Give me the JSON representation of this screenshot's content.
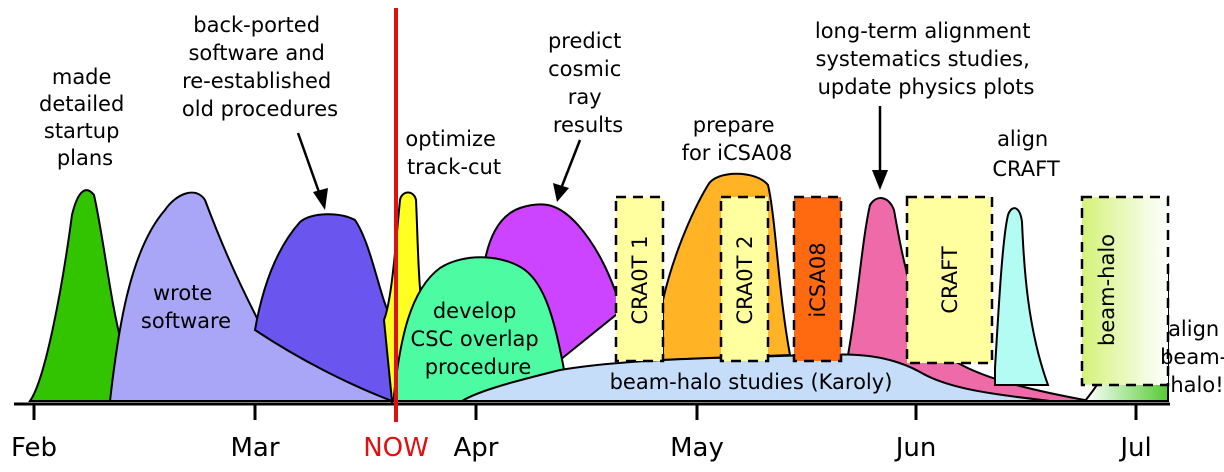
{
  "axis": {
    "months": [
      "Feb",
      "Mar",
      "Apr",
      "May",
      "Jun",
      "Jul"
    ],
    "now_label": "NOW"
  },
  "tasks": {
    "startup": [
      "made",
      "detailed",
      "startup",
      "plans"
    ],
    "wrote": [
      "wrote",
      "software"
    ],
    "backported": [
      "back-ported",
      "software and",
      "re-established",
      "old procedures"
    ],
    "optimize": [
      "optimize",
      "track-cut"
    ],
    "develop": [
      "develop",
      "CSC overlap",
      "procedure"
    ],
    "predict": [
      "predict",
      "cosmic",
      "ray",
      "results"
    ],
    "prepare": [
      "prepare",
      "for iCSA08"
    ],
    "longterm": [
      "long-term alignment",
      "systematics studies,",
      "update physics plots"
    ],
    "align_craft": [
      "align",
      "CRAFT"
    ],
    "align_halo": [
      "align",
      "beam-",
      "halo!"
    ],
    "beamhalo_studies": "beam-halo studies (Karoly)"
  },
  "periods": {
    "craft1": "CRA0T 1",
    "craft2": "CRA0T 2",
    "icsa08": "iCSA08",
    "craft": "CRAFT",
    "beamhalo": "beam-halo"
  },
  "colors": {
    "now_line": "#dd1111",
    "startup": "#33c400",
    "wrote": "#aaa6f7",
    "backported": "#6a55ee",
    "optimize": "#ffff22",
    "develop": "#4dfca2",
    "predict": "#cc44ff",
    "prepare": "#ffb325",
    "icsa08": "#ff6a10",
    "longterm": "#ee6aa9",
    "align_craft": "#b2fcf3",
    "pale_yellow": "#ffffa0",
    "beamhalo_studies": "#c6ddfa",
    "halo_green": "#7ad850"
  }
}
